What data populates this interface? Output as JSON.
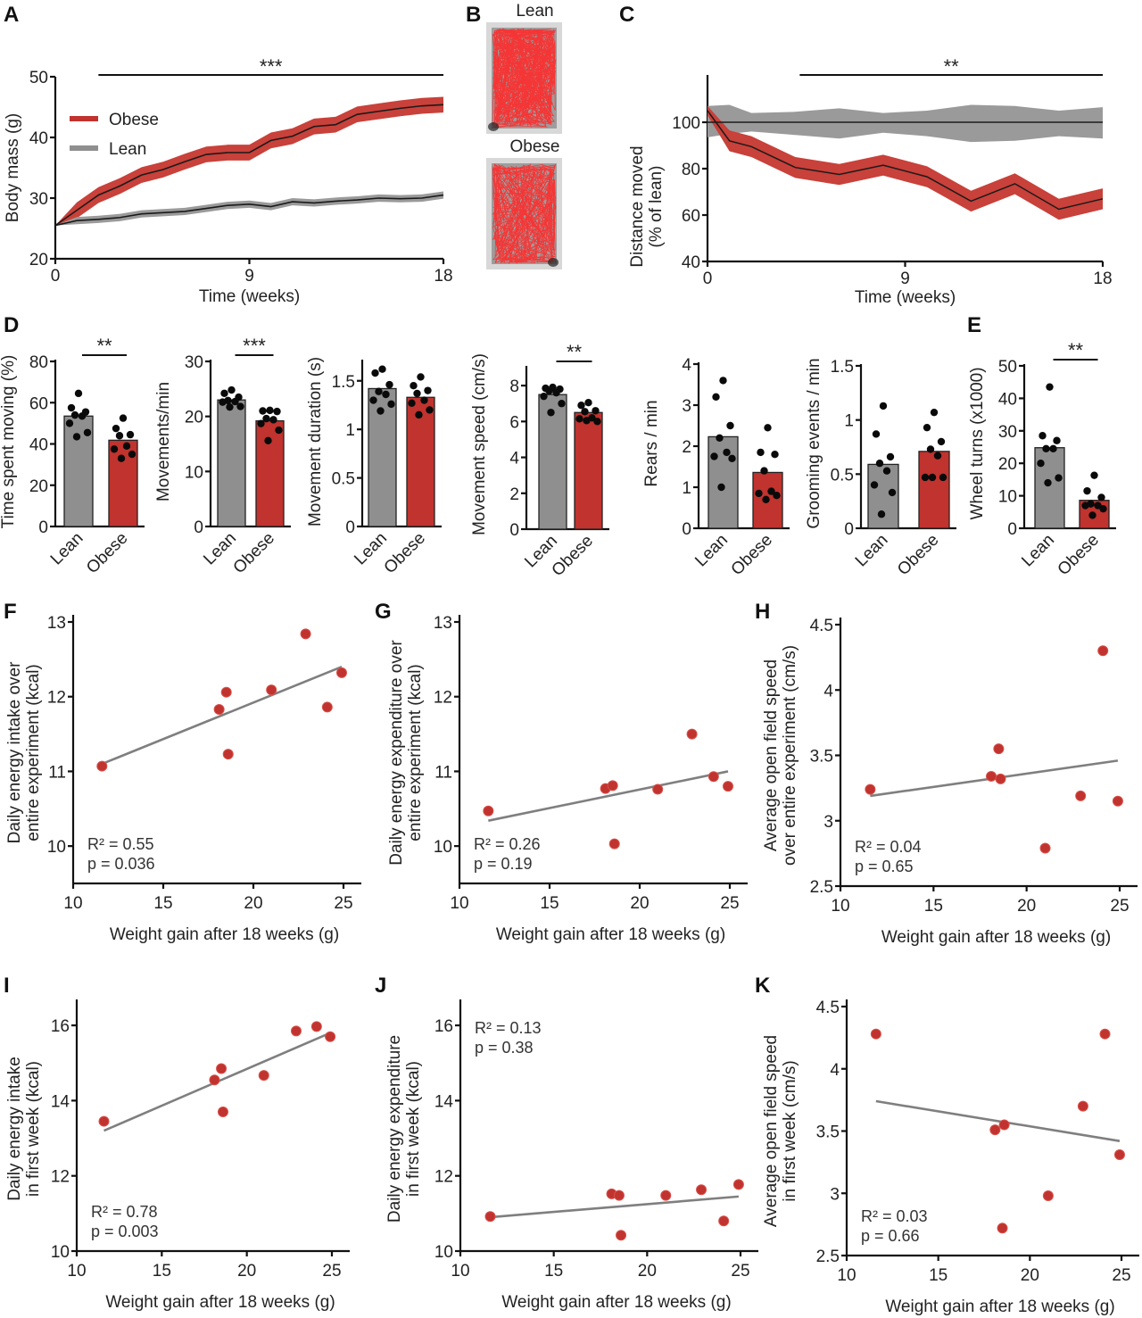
{
  "figure": {
    "colors": {
      "obese": "#c0332e",
      "obese_band": "#c8413a",
      "lean": "#8f8f8f",
      "lean_band": "#9a9a9a",
      "mean_line": "#1a1a1a",
      "fit_line": "#7f7f7f",
      "point": "#c0332e",
      "dot": "#0a0a0a",
      "track": "#ff2a2a",
      "arena": "#9d9d9d"
    },
    "panel_B": {
      "letter": "B",
      "images": [
        {
          "label": "Lean",
          "description": "open-field tracking trace, dense coverage"
        },
        {
          "label": "Obese",
          "description": "open-field tracking trace, sparse center coverage"
        }
      ]
    }
  },
  "chart_data": [
    {
      "panel": "A",
      "type": "line",
      "title": "",
      "xlabel": "Time (weeks)",
      "ylabel": "Body mass (g)",
      "xlim": [
        0,
        18
      ],
      "ylim": [
        20,
        50
      ],
      "xticks": [
        0,
        9,
        18
      ],
      "yticks": [
        20,
        30,
        40,
        50
      ],
      "legend": {
        "position": "top-left",
        "entries": [
          "Obese",
          "Lean"
        ]
      },
      "significance": {
        "label": "***",
        "x_range": [
          2,
          18
        ]
      },
      "x": [
        0,
        1,
        2,
        3,
        4,
        5,
        6,
        7,
        8,
        9,
        10,
        11,
        12,
        13,
        14,
        15,
        16,
        17,
        18
      ],
      "series": [
        {
          "name": "Obese",
          "values": [
            25.5,
            28,
            30.5,
            32,
            33.8,
            34.7,
            36,
            37.2,
            37.5,
            37.5,
            39.5,
            40.2,
            41.8,
            42.1,
            43.8,
            44.3,
            44.8,
            45.2,
            45.4
          ],
          "band": 1.3
        },
        {
          "name": "Lean",
          "values": [
            25.5,
            26.3,
            26.5,
            26.8,
            27.4,
            27.6,
            27.8,
            28.3,
            28.8,
            29.0,
            28.6,
            29.4,
            29.2,
            29.5,
            29.7,
            30.0,
            29.9,
            30.0,
            30.5
          ],
          "band": 0.6
        }
      ]
    },
    {
      "panel": "C",
      "type": "line",
      "title": "",
      "xlabel": "Time (weeks)",
      "ylabel": "Distance moved (% of lean)",
      "xlim": [
        0,
        18
      ],
      "ylim": [
        40,
        120
      ],
      "xticks": [
        0,
        9,
        18
      ],
      "yticks": [
        40,
        60,
        80,
        100
      ],
      "significance": {
        "label": "**",
        "x_range": [
          4.2,
          18
        ]
      },
      "series": [
        {
          "name": "Lean",
          "x": [
            0,
            1,
            2,
            4,
            6,
            8,
            10,
            12,
            14,
            16,
            18
          ],
          "values": [
            100,
            100,
            100,
            100,
            100,
            100,
            100,
            100,
            100,
            100,
            100
          ],
          "band_upper": [
            107,
            107.5,
            104,
            104.5,
            106,
            104,
            105,
            107.5,
            107,
            105,
            106.5
          ],
          "band_lower": [
            93.5,
            95,
            96,
            94.5,
            93,
            95.5,
            94,
            91.5,
            92,
            94,
            93
          ]
        },
        {
          "name": "Obese",
          "x": [
            0,
            1,
            2,
            4,
            6,
            8,
            10,
            12,
            14,
            16,
            18
          ],
          "values": [
            105,
            92,
            89.5,
            80.5,
            77.5,
            81.5,
            76.5,
            66,
            73.5,
            62.5,
            67
          ],
          "band": 4.5
        }
      ]
    },
    {
      "panel": "D1",
      "type": "bar",
      "ylabel": "Time spent moving (%)",
      "categories": [
        "Lean",
        "Obese"
      ],
      "values": [
        53.5,
        41.8
      ],
      "ylim": [
        0,
        80
      ],
      "yticks": [
        0,
        20,
        40,
        60,
        80
      ],
      "points": [
        [
          64.5,
          57.5,
          55.5,
          54,
          53.5,
          50,
          45.5,
          43.5
        ],
        [
          52.5,
          47.5,
          44.5,
          44,
          39,
          37.5,
          35,
          33
        ]
      ],
      "significance": "**"
    },
    {
      "panel": "D2",
      "type": "bar",
      "ylabel": "Movements/min",
      "categories": [
        "Lean",
        "Obese"
      ],
      "values": [
        23.0,
        19.2
      ],
      "ylim": [
        0,
        30
      ],
      "yticks": [
        0,
        10,
        20,
        30
      ],
      "points": [
        [
          24.8,
          24.2,
          23.5,
          22.9,
          22.7,
          22.6,
          21.8,
          21.7
        ],
        [
          21.1,
          21.0,
          20.9,
          19.6,
          19.4,
          18.7,
          17.5,
          15.6
        ]
      ],
      "significance": "***"
    },
    {
      "panel": "D3",
      "type": "bar",
      "ylabel": "Movement duration (s)",
      "categories": [
        "Lean",
        "Obese"
      ],
      "values": [
        1.42,
        1.33
      ],
      "ylim": [
        0,
        1.7
      ],
      "yticks": [
        0.0,
        0.5,
        1.0,
        1.5
      ],
      "points": [
        [
          1.62,
          1.58,
          1.46,
          1.39,
          1.36,
          1.3,
          1.26,
          1.19
        ],
        [
          1.54,
          1.45,
          1.4,
          1.37,
          1.3,
          1.27,
          1.2,
          1.15
        ]
      ],
      "significance": ""
    },
    {
      "panel": "D4",
      "type": "bar",
      "ylabel": "Movement speed (cm/s)",
      "categories": [
        "Lean",
        "Obese"
      ],
      "values": [
        7.5,
        6.5
      ],
      "ylim": [
        0,
        9
      ],
      "yticks": [
        0,
        2,
        4,
        6,
        8
      ],
      "points": [
        [
          7.9,
          7.85,
          7.8,
          7.7,
          7.6,
          7.4,
          7.0,
          6.5
        ],
        [
          7.05,
          6.9,
          6.6,
          6.55,
          6.2,
          6.15,
          6.0,
          6.05
        ]
      ],
      "significance": "**"
    },
    {
      "panel": "D5",
      "type": "bar",
      "ylabel": "Rears / min",
      "categories": [
        "Lean",
        "Obese"
      ],
      "values": [
        2.23,
        1.36
      ],
      "ylim": [
        0,
        4
      ],
      "yticks": [
        0,
        1,
        2,
        3,
        4
      ],
      "points": [
        [
          3.6,
          3.2,
          2.5,
          2.2,
          1.85,
          1.75,
          1.7,
          1.0
        ],
        [
          2.45,
          1.85,
          1.8,
          1.4,
          0.9,
          0.85,
          0.8,
          0.7
        ]
      ],
      "significance": ""
    },
    {
      "panel": "D6",
      "type": "bar",
      "ylabel": "Grooming events / min",
      "categories": [
        "Lean",
        "Obese"
      ],
      "values": [
        0.59,
        0.71
      ],
      "ylim": [
        0,
        1.5
      ],
      "yticks": [
        0.0,
        0.5,
        1.0,
        1.5
      ],
      "points": [
        [
          1.13,
          0.87,
          0.66,
          0.6,
          0.53,
          0.4,
          0.33,
          0.13
        ],
        [
          1.07,
          0.93,
          0.8,
          0.73,
          0.67,
          0.47,
          0.47,
          0.47
        ]
      ],
      "significance": ""
    },
    {
      "panel": "E",
      "type": "bar",
      "ylabel": "Wheel turns (x1000)",
      "categories": [
        "Lean",
        "Obese"
      ],
      "values": [
        24.8,
        8.6
      ],
      "ylim": [
        0,
        50
      ],
      "yticks": [
        0,
        10,
        20,
        30,
        40,
        50
      ],
      "points": [
        [
          43.5,
          28.5,
          27.0,
          24.5,
          24.5,
          20.0,
          15.5,
          14.0
        ],
        [
          16.3,
          11.5,
          9.5,
          7.5,
          7.0,
          7.0,
          6.0,
          4.0
        ]
      ],
      "significance": "**"
    },
    {
      "panel": "F",
      "type": "scatter",
      "xlabel": "Weight gain after 18 weeks (g)",
      "ylabel": "Daily energy intake over entire experiment (kcal)",
      "ylabel_lines": [
        "Daily energy intake over",
        "entire experiment (kcal)"
      ],
      "xlim": [
        10,
        26
      ],
      "ylim": [
        9.5,
        13
      ],
      "xticks": [
        10,
        15,
        20,
        25
      ],
      "yticks": [
        10,
        11,
        12,
        13
      ],
      "x": [
        11.6,
        18.1,
        18.5,
        18.6,
        21.0,
        22.9,
        24.1,
        24.9
      ],
      "y": [
        11.07,
        11.83,
        12.06,
        11.23,
        12.09,
        12.84,
        11.86,
        12.32
      ],
      "fit": [
        [
          11.6,
          11.1
        ],
        [
          24.9,
          12.4
        ]
      ],
      "annotation": {
        "r2": "R² = 0.55",
        "p": "p = 0.036",
        "position": "bottom-left"
      }
    },
    {
      "panel": "G",
      "type": "scatter",
      "xlabel": "Weight gain after 18 weeks (g)",
      "ylabel": "Daily energy expenditure over entire experiment (kcal)",
      "ylabel_lines": [
        "Daily energy expenditure over",
        "entire experiment (kcal)"
      ],
      "xlim": [
        10,
        26
      ],
      "ylim": [
        9.5,
        13
      ],
      "xticks": [
        10,
        15,
        20,
        25
      ],
      "yticks": [
        10,
        11,
        12,
        13
      ],
      "x": [
        11.6,
        18.1,
        18.5,
        18.6,
        21.0,
        22.9,
        24.1,
        24.9
      ],
      "y": [
        10.47,
        10.77,
        10.81,
        10.03,
        10.76,
        11.5,
        10.93,
        10.8
      ],
      "fit": [
        [
          11.6,
          10.34
        ],
        [
          24.9,
          11.0
        ]
      ],
      "annotation": {
        "r2": "R² = 0.26",
        "p": "p = 0.19",
        "position": "bottom-left"
      }
    },
    {
      "panel": "H",
      "type": "scatter",
      "xlabel": "Weight gain after 18 weeks (g)",
      "ylabel": "Average open field speed over entire experiment (cm/s)",
      "ylabel_lines": [
        "Average open field speed",
        "over entire experiment (cm/s)"
      ],
      "xlim": [
        10,
        26
      ],
      "ylim": [
        2.5,
        4.5
      ],
      "xticks": [
        10,
        15,
        20,
        25
      ],
      "yticks": [
        2.5,
        3.0,
        3.5,
        4.0,
        4.5
      ],
      "x": [
        11.6,
        18.1,
        18.5,
        18.6,
        21.0,
        22.9,
        24.1,
        24.9
      ],
      "y": [
        3.24,
        3.34,
        3.55,
        3.32,
        2.79,
        3.19,
        4.3,
        3.15
      ],
      "fit": [
        [
          11.6,
          3.19
        ],
        [
          24.9,
          3.46
        ]
      ],
      "annotation": {
        "r2": "R² = 0.04",
        "p": "p = 0.65",
        "position": "bottom-left"
      }
    },
    {
      "panel": "I",
      "type": "scatter",
      "xlabel": "Weight gain after 18 weeks (g)",
      "ylabel": "Daily energy intake in first week (kcal)",
      "ylabel_lines": [
        "Daily energy intake",
        "in first week (kcal)"
      ],
      "xlim": [
        10,
        26
      ],
      "ylim": [
        10,
        16.5
      ],
      "xticks": [
        10,
        15,
        20,
        25
      ],
      "yticks": [
        10,
        12,
        14,
        16
      ],
      "x": [
        11.6,
        18.1,
        18.5,
        18.6,
        21.0,
        22.9,
        24.1,
        24.9
      ],
      "y": [
        13.45,
        14.55,
        14.85,
        13.7,
        14.67,
        15.85,
        15.97,
        15.7
      ],
      "fit": [
        [
          11.6,
          13.2
        ],
        [
          24.9,
          15.8
        ]
      ],
      "annotation": {
        "r2": "R² = 0.78",
        "p": "p = 0.003",
        "position": "bottom-left"
      }
    },
    {
      "panel": "J",
      "type": "scatter",
      "xlabel": "Weight gain after 18 weeks (g)",
      "ylabel": "Daily energy expenditure in first week (kcal)",
      "ylabel_lines": [
        "Daily energy expenditure",
        "in first week (kcal)"
      ],
      "xlim": [
        10,
        26
      ],
      "ylim": [
        10,
        16.5
      ],
      "xticks": [
        10,
        15,
        20,
        25
      ],
      "yticks": [
        10,
        12,
        14,
        16
      ],
      "x": [
        11.6,
        18.1,
        18.5,
        18.6,
        21.0,
        22.9,
        24.1,
        24.9
      ],
      "y": [
        10.92,
        11.52,
        11.48,
        10.42,
        11.48,
        11.63,
        10.8,
        11.77
      ],
      "fit": [
        [
          11.6,
          10.9
        ],
        [
          24.9,
          11.45
        ]
      ],
      "annotation": {
        "r2": "R² = 0.13",
        "p": "p = 0.38",
        "position": "top-left"
      }
    },
    {
      "panel": "K",
      "type": "scatter",
      "xlabel": "Weight gain after 18 weeks (g)",
      "ylabel": "Average open field speed in first week (cm/s)",
      "ylabel_lines": [
        "Average open field speed",
        "in first week (cm/s)"
      ],
      "xlim": [
        10,
        26
      ],
      "ylim": [
        2.5,
        4.5
      ],
      "xticks": [
        10,
        15,
        20,
        25
      ],
      "yticks": [
        2.5,
        3.0,
        3.5,
        4.0,
        4.5
      ],
      "x": [
        11.6,
        18.1,
        18.5,
        18.6,
        21.0,
        22.9,
        24.1,
        24.9
      ],
      "y": [
        4.28,
        3.51,
        2.72,
        3.55,
        2.98,
        3.7,
        4.28,
        3.31
      ],
      "fit": [
        [
          11.6,
          3.74
        ],
        [
          24.9,
          3.42
        ]
      ],
      "annotation": {
        "r2": "R² = 0.03",
        "p": "p = 0.66",
        "position": "bottom-left"
      }
    }
  ]
}
